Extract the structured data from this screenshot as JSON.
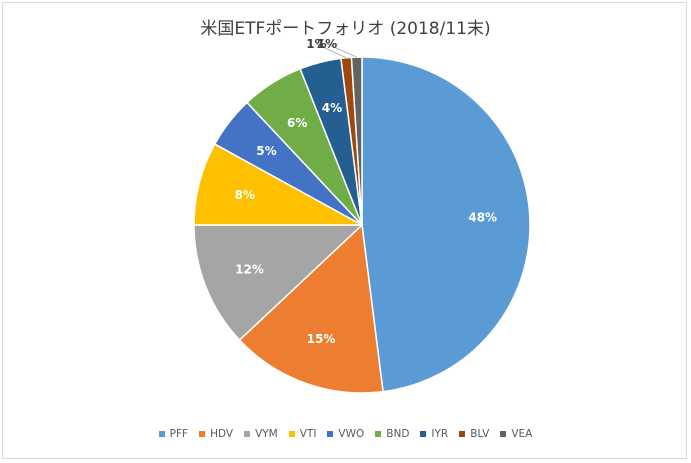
{
  "chart_data": {
    "type": "pie",
    "title": "米国ETFポートフォリオ (2018/11末)",
    "categories": [
      "PFF",
      "HDV",
      "VYM",
      "VTI",
      "VWO",
      "BND",
      "IYR",
      "BLV",
      "VEA"
    ],
    "values": [
      48,
      15,
      12,
      8,
      5,
      6,
      4,
      1,
      1
    ],
    "labels": [
      "48%",
      "15%",
      "12%",
      "8%",
      "5%",
      "6%",
      "4%",
      "1%",
      "1%"
    ],
    "colors": [
      "#5b9bd5",
      "#ed7d31",
      "#a5a5a5",
      "#ffc000",
      "#4472c4",
      "#70ad47",
      "#255e91",
      "#9e480e",
      "#636363"
    ],
    "legend_position": "bottom"
  }
}
